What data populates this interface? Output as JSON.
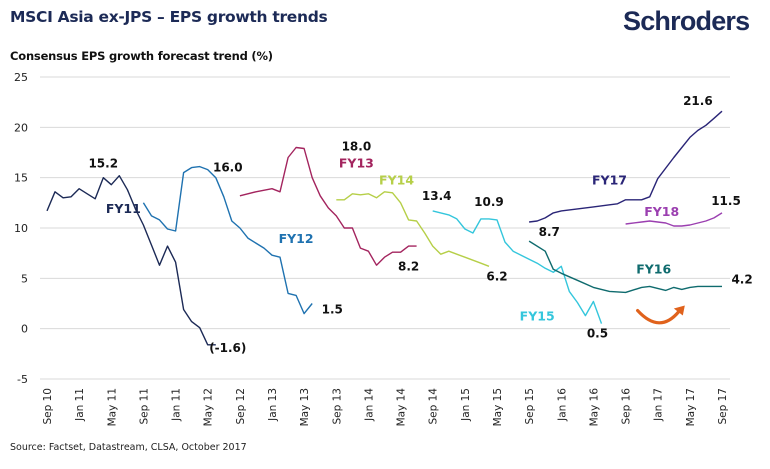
{
  "header": {
    "title": "MSCI Asia ex-JPS – EPS growth trends",
    "logo": "Schroders",
    "subtitle": "Consensus EPS growth forecast trend (%)"
  },
  "footer": {
    "source": "Source: Factset, Datastream, CLSA, October 2017"
  },
  "colors": {
    "title": "#1c2a56",
    "grid": "#d9d9d9",
    "arrow": "#e0621c"
  },
  "chart_data": {
    "type": "line",
    "title": "MSCI Asia ex-JPS – EPS growth trends",
    "ylabel": "Consensus EPS growth forecast trend (%)",
    "xlabel": "",
    "ylim": [
      -5,
      25
    ],
    "yticks": [
      -5,
      0,
      5,
      10,
      15,
      20,
      25
    ],
    "grid": true,
    "legend": "inline labels",
    "x_unit": "months since Sep 10",
    "xlim": [
      0,
      84
    ],
    "xticks": [
      {
        "m": 0,
        "label": "Sep 10"
      },
      {
        "m": 4,
        "label": "Jan 11"
      },
      {
        "m": 8,
        "label": "May 11"
      },
      {
        "m": 12,
        "label": "Sep 11"
      },
      {
        "m": 16,
        "label": "Jan 11"
      },
      {
        "m": 20,
        "label": "May 12"
      },
      {
        "m": 24,
        "label": "Sep 12"
      },
      {
        "m": 28,
        "label": "Jan 13"
      },
      {
        "m": 32,
        "label": "May 13"
      },
      {
        "m": 36,
        "label": "Sep 13"
      },
      {
        "m": 40,
        "label": "Jan 14"
      },
      {
        "m": 44,
        "label": "May 14"
      },
      {
        "m": 48,
        "label": "Sep 14"
      },
      {
        "m": 52,
        "label": "Jan 15"
      },
      {
        "m": 56,
        "label": "May 15"
      },
      {
        "m": 60,
        "label": "Sep 15"
      },
      {
        "m": 64,
        "label": "Jan 16"
      },
      {
        "m": 68,
        "label": "May 16"
      },
      {
        "m": 72,
        "label": "Sep 16"
      },
      {
        "m": 76,
        "label": "Jan 17"
      },
      {
        "m": 80,
        "label": "May 17"
      },
      {
        "m": 84,
        "label": "Sep 17"
      }
    ],
    "series": [
      {
        "name": "FY11",
        "color": "#1c2a56",
        "x": [
          0,
          1,
          2,
          3,
          4,
          5,
          6,
          7,
          8,
          9,
          10,
          11,
          12,
          13,
          14,
          15,
          16,
          17,
          18,
          19,
          20,
          21
        ],
        "values": [
          11.7,
          13.6,
          13.0,
          13.1,
          13.9,
          13.4,
          12.9,
          15.0,
          14.3,
          15.2,
          13.8,
          11.9,
          10.3,
          8.3,
          6.3,
          8.2,
          6.6,
          1.9,
          0.7,
          0.1,
          -1.6,
          -1.6
        ],
        "label_pos": {
          "m": 9.5,
          "v": 11.5
        },
        "data_labels": [
          {
            "m": 7,
            "v": 16.0,
            "text": "15.2"
          },
          {
            "m": 22.5,
            "v": -2.3,
            "text": "(-1.6)"
          }
        ]
      },
      {
        "name": "FY12",
        "color": "#1f72b0",
        "x": [
          12,
          13,
          14,
          15,
          16,
          17,
          18,
          19,
          20,
          21,
          22,
          23,
          24,
          25,
          26,
          27,
          28,
          29,
          30,
          31,
          32,
          33
        ],
        "values": [
          12.5,
          11.2,
          10.8,
          9.9,
          9.7,
          15.5,
          16.0,
          16.1,
          15.8,
          15.0,
          13.1,
          10.7,
          10.0,
          9.0,
          8.5,
          8.0,
          7.3,
          7.1,
          3.5,
          3.3,
          1.5,
          2.5
        ],
        "label_pos": {
          "m": 31,
          "v": 8.5
        },
        "data_labels": [
          {
            "m": 22.5,
            "v": 15.6,
            "text": "16.0"
          },
          {
            "m": 35.5,
            "v": 1.5,
            "text": "1.5"
          }
        ]
      },
      {
        "name": "FY13",
        "color": "#a3245e",
        "x": [
          24,
          26,
          28,
          29,
          30,
          31,
          32,
          33,
          34,
          35,
          36,
          37,
          38,
          39,
          40,
          41,
          42,
          43,
          44,
          45,
          46
        ],
        "values": [
          13.2,
          13.6,
          13.9,
          13.6,
          17.0,
          18.0,
          17.9,
          15.0,
          13.2,
          12.0,
          11.2,
          10.0,
          10.0,
          8.0,
          7.7,
          6.3,
          7.1,
          7.6,
          7.6,
          8.2,
          8.2
        ],
        "label_pos": {
          "m": 38.5,
          "v": 16.0
        },
        "data_labels": [
          {
            "m": 38.5,
            "v": 17.7,
            "text": "18.0"
          },
          {
            "m": 45,
            "v": 5.8,
            "text": "8.2"
          }
        ]
      },
      {
        "name": "FY14",
        "color": "#b6cf48",
        "x": [
          36,
          37,
          38,
          39,
          40,
          41,
          42,
          43,
          44,
          45,
          46,
          47,
          48,
          49,
          50,
          51,
          52,
          53,
          54,
          55
        ],
        "values": [
          12.8,
          12.8,
          13.4,
          13.3,
          13.4,
          13.0,
          13.6,
          13.5,
          12.5,
          10.8,
          10.7,
          9.5,
          8.2,
          7.4,
          7.7,
          7.4,
          7.1,
          6.8,
          6.5,
          6.2
        ],
        "label_pos": {
          "m": 43.5,
          "v": 14.3
        },
        "data_labels": [
          {
            "m": 48.5,
            "v": 12.8,
            "text": "13.4"
          },
          {
            "m": 56,
            "v": 4.8,
            "text": "6.2"
          }
        ]
      },
      {
        "name": "FY15",
        "color": "#34c6dc",
        "x": [
          48,
          50,
          51,
          52,
          53,
          54,
          55,
          56,
          57,
          58,
          59,
          60,
          61,
          62,
          63,
          64,
          65,
          66,
          67,
          68,
          69
        ],
        "values": [
          11.7,
          11.3,
          10.9,
          9.9,
          9.5,
          10.9,
          10.9,
          10.8,
          8.6,
          7.7,
          7.3,
          6.9,
          6.5,
          6.0,
          5.6,
          6.2,
          3.7,
          2.6,
          1.3,
          2.7,
          0.5
        ],
        "label_pos": {
          "m": 61,
          "v": 0.8
        },
        "data_labels": [
          {
            "m": 55,
            "v": 12.2,
            "text": "10.9"
          },
          {
            "m": 68.5,
            "v": -0.9,
            "text": "0.5"
          }
        ]
      },
      {
        "name": "FY16",
        "color": "#0f6b6e",
        "x": [
          60,
          62,
          63,
          64,
          66,
          68,
          70,
          72,
          74,
          75,
          76,
          77,
          78,
          79,
          80,
          81,
          82,
          84
        ],
        "values": [
          8.7,
          7.7,
          5.9,
          5.5,
          4.8,
          4.1,
          3.7,
          3.6,
          4.1,
          4.2,
          4.0,
          3.8,
          4.1,
          3.9,
          4.1,
          4.2,
          4.2,
          4.2
        ],
        "label_pos": {
          "m": 75.5,
          "v": 5.5
        },
        "data_labels": [
          {
            "m": 62.5,
            "v": 9.2,
            "text": "8.7"
          },
          {
            "m": 86.5,
            "v": 4.5,
            "text": "4.2"
          }
        ]
      },
      {
        "name": "FY17",
        "color": "#2a2577",
        "x": [
          60,
          61,
          62,
          63,
          64,
          66,
          68,
          70,
          71,
          72,
          73,
          74,
          75,
          76,
          78,
          80,
          81,
          82,
          83,
          84
        ],
        "values": [
          10.6,
          10.7,
          11.0,
          11.5,
          11.7,
          11.9,
          12.1,
          12.3,
          12.4,
          12.8,
          12.8,
          12.8,
          13.1,
          14.9,
          17.0,
          19.0,
          19.7,
          20.2,
          20.9,
          21.6
        ],
        "label_pos": {
          "m": 70,
          "v": 14.3
        },
        "data_labels": [
          {
            "m": 81,
            "v": 22.2,
            "text": "21.6"
          }
        ]
      },
      {
        "name": "FY18",
        "color": "#9b3fb0",
        "x": [
          72,
          74,
          75,
          76,
          77,
          78,
          79,
          80,
          81,
          82,
          83,
          84
        ],
        "values": [
          10.4,
          10.6,
          10.7,
          10.6,
          10.5,
          10.2,
          10.2,
          10.3,
          10.5,
          10.7,
          11.0,
          11.5
        ],
        "label_pos": {
          "m": 76.5,
          "v": 11.2
        },
        "data_labels": [
          {
            "m": 84.5,
            "v": 12.3,
            "text": "11.5"
          }
        ]
      }
    ],
    "annotations": [
      {
        "type": "curved-arrow",
        "description": "upturn arrow under FY16",
        "from_m": 73.5,
        "to_m": 79,
        "v": 1.6
      }
    ]
  }
}
